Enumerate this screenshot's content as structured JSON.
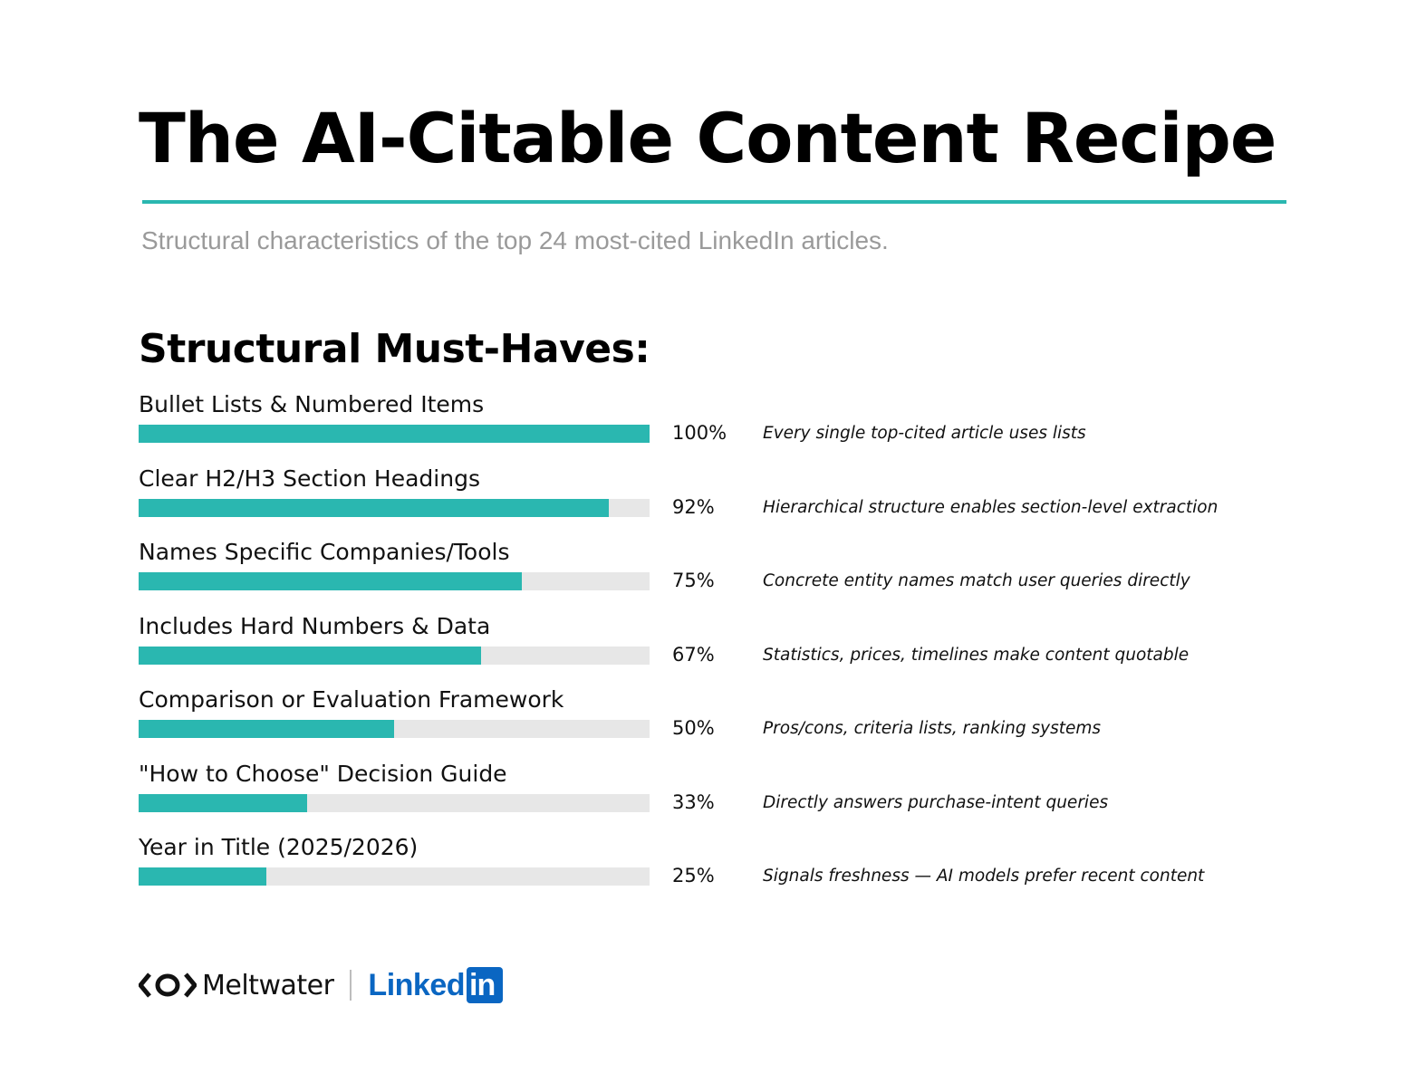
{
  "title": "The AI-Citable Content Recipe",
  "subtitle": "Structural characteristics of the top 24 most-cited LinkedIn articles.",
  "section_heading": "Structural Must-Haves:",
  "colors": {
    "accent": "#2ab7b0",
    "track": "#e7e7e7",
    "linkedin_blue": "#0a66c2"
  },
  "footer": {
    "meltwater_label": "Meltwater",
    "meltwater_icon": "meltwater-logo-icon",
    "linkedin_text": "Linked",
    "linkedin_box_text": "in"
  },
  "chart_data": {
    "type": "bar",
    "orientation": "horizontal",
    "title": "Structural Must-Haves:",
    "ylim": [
      0,
      100
    ],
    "categories": [
      "Bullet Lists & Numbered Items",
      "Clear H2/H3 Section Headings",
      "Names Specific Companies/Tools",
      "Includes Hard Numbers & Data",
      "Comparison or Evaluation Framework",
      "\"How to Choose\" Decision Guide",
      "Year in Title (2025/2026)"
    ],
    "values": [
      100,
      92,
      75,
      67,
      50,
      33,
      25
    ],
    "value_labels": [
      "100%",
      "92%",
      "75%",
      "67%",
      "50%",
      "33%",
      "25%"
    ],
    "annotations": [
      "Every single top-cited article uses lists",
      "Hierarchical structure enables section-level extraction",
      "Concrete entity names match user queries directly",
      "Statistics, prices, timelines make content quotable",
      "Pros/cons, criteria lists, ranking systems",
      "Directly answers purchase-intent queries",
      "Signals freshness — AI models prefer recent content"
    ],
    "grid": false,
    "legend": "none"
  }
}
